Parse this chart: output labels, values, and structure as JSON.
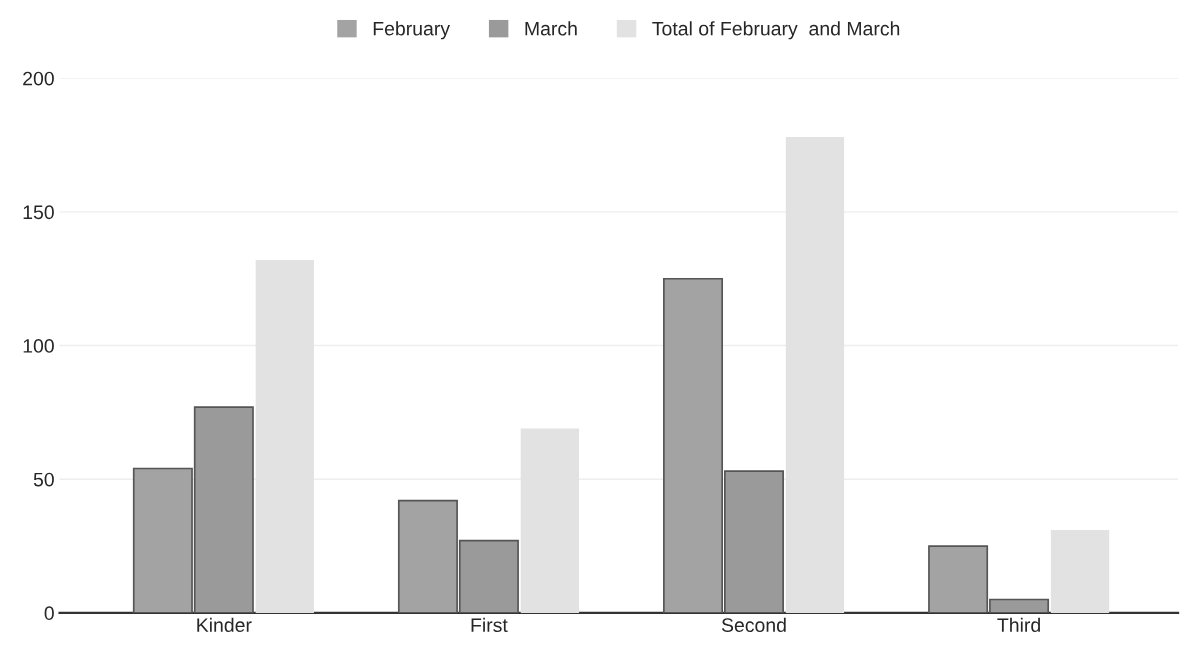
{
  "chart_data": {
    "type": "bar",
    "categories": [
      "Kinder",
      "First",
      "Second",
      "Third"
    ],
    "series": [
      {
        "name": "February",
        "color": "#a3a3a3",
        "values": [
          54,
          42,
          125,
          25
        ]
      },
      {
        "name": "March",
        "color": "#9a9a9a",
        "values": [
          77,
          27,
          53,
          5
        ]
      },
      {
        "name": "Total of February  and March",
        "color": "#e2e2e2",
        "values": [
          132,
          69,
          178,
          31
        ]
      }
    ],
    "ylim": [
      0,
      200
    ],
    "yticks": [
      0,
      50,
      100,
      150,
      200
    ],
    "grid": "y",
    "legend": "top"
  }
}
